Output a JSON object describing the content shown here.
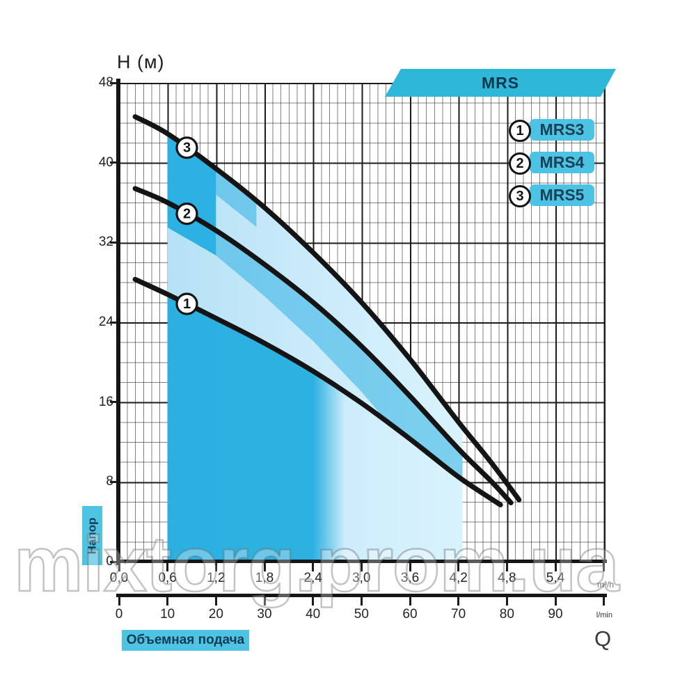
{
  "labels": {
    "h_title": "H (м)",
    "q_title": "Q",
    "head_box": "Напор",
    "flow_box": "Объемная подача"
  },
  "banner": {
    "title": "MRS",
    "color": "#2eb7d9"
  },
  "legend": {
    "items": [
      {
        "num": "1",
        "label": "MRS3"
      },
      {
        "num": "2",
        "label": "MRS4"
      },
      {
        "num": "3",
        "label": "MRS5"
      }
    ]
  },
  "watermark": {
    "text": "mixtorg.prom.ua"
  },
  "colors": {
    "accent_cyan": "#2eb7d9",
    "pill_cyan": "#4cc3e4",
    "fill_strong": "#1facdf",
    "fill_light_left": "#b5e1f6",
    "fill_light_right": "#d9f3fd",
    "curve": "#141414"
  },
  "chart_data": {
    "type": "line",
    "title": "MRS",
    "xlabel": "Q",
    "ylabel": "H (м)",
    "grid": "major+minor",
    "legend_position": "top-right",
    "xlim_m3h": [
      0,
      6
    ],
    "ylim": [
      0,
      48
    ],
    "shaded_range_m3h": [
      0.6,
      4.25
    ],
    "marker_q": 0.84,
    "axes": {
      "h": {
        "title": "H (м)",
        "ticks": [
          "48",
          "40",
          "32",
          "24",
          "16",
          "8",
          "0"
        ],
        "values": [
          48,
          40,
          32,
          24,
          16,
          8,
          0
        ]
      },
      "q_m3h": {
        "unit": "m³/h",
        "labels": [
          "0,0",
          "0,6",
          "1,2",
          "1,8",
          "2,4",
          "3,0",
          "3,6",
          "4,2",
          "4,8",
          "5,4"
        ],
        "values": [
          0,
          0.6,
          1.2,
          1.8,
          2.4,
          3.0,
          3.6,
          4.2,
          4.8,
          5.4
        ]
      },
      "q_lmin": {
        "unit": "l/min",
        "labels": [
          "0",
          "10",
          "20",
          "30",
          "40",
          "50",
          "60",
          "70",
          "80",
          "90"
        ],
        "values": [
          0,
          10,
          20,
          30,
          40,
          50,
          60,
          70,
          80,
          90
        ]
      }
    },
    "series": [
      {
        "id": "1",
        "name": "MRS3",
        "points": [
          [
            0.2,
            28.3
          ],
          [
            0.6,
            26.8
          ],
          [
            1.2,
            24.4
          ],
          [
            1.8,
            21.9
          ],
          [
            2.4,
            19.1
          ],
          [
            3.0,
            15.9
          ],
          [
            3.6,
            12.3
          ],
          [
            4.2,
            8.5
          ],
          [
            4.72,
            5.7
          ]
        ]
      },
      {
        "id": "2",
        "name": "MRS4",
        "points": [
          [
            0.2,
            37.4
          ],
          [
            0.6,
            36.0
          ],
          [
            1.2,
            33.2
          ],
          [
            1.8,
            29.8
          ],
          [
            2.4,
            26.0
          ],
          [
            3.0,
            21.6
          ],
          [
            3.6,
            16.6
          ],
          [
            4.2,
            11.3
          ],
          [
            4.6,
            8.1
          ],
          [
            4.85,
            5.9
          ]
        ]
      },
      {
        "id": "3",
        "name": "MRS5",
        "points": [
          [
            0.2,
            44.6
          ],
          [
            0.6,
            42.9
          ],
          [
            1.2,
            39.4
          ],
          [
            1.8,
            35.5
          ],
          [
            2.4,
            31.0
          ],
          [
            3.0,
            26.0
          ],
          [
            3.6,
            20.3
          ],
          [
            4.2,
            14.0
          ],
          [
            4.6,
            10.0
          ],
          [
            4.95,
            6.2
          ]
        ]
      }
    ]
  }
}
